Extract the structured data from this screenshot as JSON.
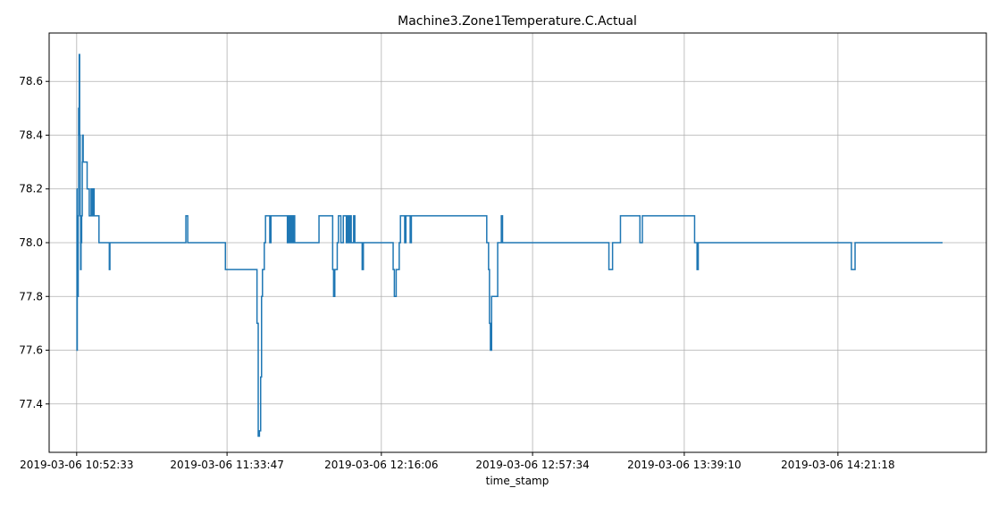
{
  "chart_data": {
    "type": "line",
    "title": "Machine3.Zone1Temperature.C.Actual",
    "xlabel": "time_stamp",
    "ylabel": "",
    "grid": true,
    "legend": "none",
    "series_color": "#1f77b4",
    "xlim": [
      "2019-03-06 10:45:00",
      "2019-03-06 15:02:00"
    ],
    "ylim": [
      77.22,
      78.78
    ],
    "x_tick_labels": [
      "2019-03-06 10:52:33",
      "2019-03-06 11:33:47",
      "2019-03-06 12:16:06",
      "2019-03-06 12:57:34",
      "2019-03-06 13:39:10",
      "2019-03-06 14:21:18"
    ],
    "y_tick_labels": [
      "77.4",
      "77.6",
      "77.8",
      "78.0",
      "78.2",
      "78.4",
      "78.6"
    ],
    "y_ticks": [
      77.4,
      77.6,
      77.8,
      78.0,
      78.2,
      78.4,
      78.6
    ],
    "series": [
      {
        "x": [
          "2019-03-06 10:52:33",
          "2019-03-06 10:52:38",
          "2019-03-06 10:52:43",
          "2019-03-06 10:52:50",
          "2019-03-06 10:52:58",
          "2019-03-06 10:53:05",
          "2019-03-06 10:53:15",
          "2019-03-06 10:53:22",
          "2019-03-06 10:53:30",
          "2019-03-06 10:53:38",
          "2019-03-06 10:53:45",
          "2019-03-06 10:53:55",
          "2019-03-06 10:54:05",
          "2019-03-06 10:54:10",
          "2019-03-06 10:54:20",
          "2019-03-06 10:54:35",
          "2019-03-06 10:54:50",
          "2019-03-06 10:55:05",
          "2019-03-06 10:55:25",
          "2019-03-06 10:56:00",
          "2019-03-06 10:56:30",
          "2019-03-06 10:56:45",
          "2019-03-06 10:57:00",
          "2019-03-06 10:57:20",
          "2019-03-06 10:57:40",
          "2019-03-06 10:58:00",
          "2019-03-06 10:58:20",
          "2019-03-06 10:58:40",
          "2019-03-06 10:59:10",
          "2019-03-06 11:01:30",
          "2019-03-06 11:01:40",
          "2019-03-06 11:22:10",
          "2019-03-06 11:22:30",
          "2019-03-06 11:23:00",
          "2019-03-06 11:33:00",
          "2019-03-06 11:33:20",
          "2019-03-06 11:42:00",
          "2019-03-06 11:42:20",
          "2019-03-06 11:42:40",
          "2019-03-06 11:43:00",
          "2019-03-06 11:43:15",
          "2019-03-06 11:43:30",
          "2019-03-06 11:44:00",
          "2019-03-06 11:44:20",
          "2019-03-06 11:45:30",
          "2019-03-06 11:45:50",
          "2019-03-06 11:46:10",
          "2019-03-06 11:50:20",
          "2019-03-06 11:50:40",
          "2019-03-06 11:51:00",
          "2019-03-06 11:51:20",
          "2019-03-06 11:51:40",
          "2019-03-06 11:52:00",
          "2019-03-06 11:52:20",
          "2019-03-06 11:52:40",
          "2019-03-06 11:53:00",
          "2019-03-06 11:59:00",
          "2019-03-06 12:02:30",
          "2019-03-06 12:02:45",
          "2019-03-06 12:03:00",
          "2019-03-06 12:03:20",
          "2019-03-06 12:04:00",
          "2019-03-06 12:04:20",
          "2019-03-06 12:05:00",
          "2019-03-06 12:05:40",
          "2019-03-06 12:06:00",
          "2019-03-06 12:06:30",
          "2019-03-06 12:06:50",
          "2019-03-06 12:07:10",
          "2019-03-06 12:07:30",
          "2019-03-06 12:07:50",
          "2019-03-06 12:08:30",
          "2019-03-06 12:08:50",
          "2019-03-06 12:10:30",
          "2019-03-06 12:10:50",
          "2019-03-06 12:11:10",
          "2019-03-06 12:11:30",
          "2019-03-06 12:19:00",
          "2019-03-06 12:19:20",
          "2019-03-06 12:19:40",
          "2019-03-06 12:20:10",
          "2019-03-06 12:21:00",
          "2019-03-06 12:21:20",
          "2019-03-06 12:22:30",
          "2019-03-06 12:22:50",
          "2019-03-06 12:23:40",
          "2019-03-06 12:24:00",
          "2019-03-06 12:24:20",
          "2019-03-06 12:45:00",
          "2019-03-06 12:45:15",
          "2019-03-06 12:45:30",
          "2019-03-06 12:45:45",
          "2019-03-06 12:46:00",
          "2019-03-06 12:46:20",
          "2019-03-06 12:48:00",
          "2019-03-06 12:48:20",
          "2019-03-06 12:49:00",
          "2019-03-06 12:49:20",
          "2019-03-06 13:18:00",
          "2019-03-06 13:18:30",
          "2019-03-06 13:19:00",
          "2019-03-06 13:19:30",
          "2019-03-06 13:21:20",
          "2019-03-06 13:21:40",
          "2019-03-06 13:27:00",
          "2019-03-06 13:27:20",
          "2019-03-06 13:27:40",
          "2019-03-06 13:42:00",
          "2019-03-06 13:42:20",
          "2019-03-06 13:42:40",
          "2019-03-06 13:43:00",
          "2019-03-06 14:09:30",
          "2019-03-06 14:10:00",
          "2019-03-06 14:10:50",
          "2019-03-06 14:11:10",
          "2019-03-06 14:24:30",
          "2019-03-06 14:25:00",
          "2019-03-06 14:26:00",
          "2019-03-06 14:26:20",
          "2019-03-06 14:50:00"
        ],
        "y": [
          78.2,
          77.6,
          77.9,
          77.8,
          78.1,
          78.5,
          78.7,
          78.4,
          78.1,
          77.9,
          78.0,
          78.1,
          78.3,
          78.4,
          78.3,
          78.3,
          78.3,
          78.3,
          78.2,
          78.1,
          78.2,
          78.1,
          78.2,
          78.1,
          78.1,
          78.1,
          78.1,
          78.0,
          78.0,
          77.9,
          78.0,
          78.0,
          78.1,
          78.0,
          78.0,
          77.9,
          77.7,
          77.28,
          77.3,
          77.5,
          77.8,
          77.9,
          78.0,
          78.1,
          78.0,
          78.1,
          78.1,
          78.0,
          78.1,
          78.0,
          78.1,
          78.0,
          78.1,
          78.0,
          78.0,
          78.0,
          78.1,
          78.1,
          77.9,
          77.8,
          77.9,
          78.0,
          78.1,
          78.0,
          78.1,
          78.1,
          78.0,
          78.1,
          78.0,
          78.1,
          78.0,
          78.1,
          78.0,
          78.0,
          77.9,
          78.0,
          78.0,
          78.0,
          77.9,
          77.8,
          77.9,
          78.0,
          78.1,
          78.0,
          78.1,
          78.1,
          78.0,
          78.1,
          78.0,
          78.0,
          77.9,
          77.7,
          77.6,
          77.8,
          78.0,
          78.0,
          78.1,
          78.0,
          78.0,
          77.9,
          77.9,
          78.0,
          78.0,
          78.1,
          78.0,
          78.0,
          78.1,
          78.0,
          78.0,
          77.9,
          78.0,
          78.0,
          78.0,
          78.0,
          78.0,
          78.0,
          77.9,
          78.0,
          78.0,
          78.0
        ]
      }
    ]
  }
}
